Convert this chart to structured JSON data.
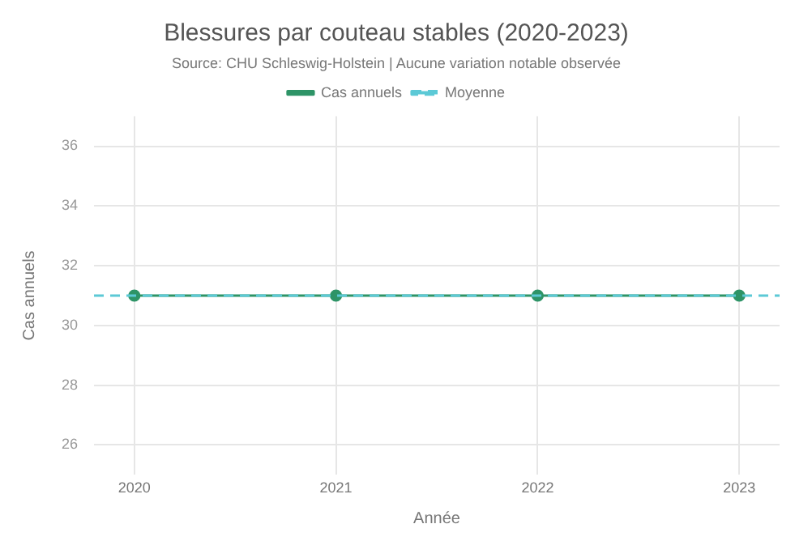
{
  "chart_data": {
    "type": "line",
    "title": "Blessures par couteau stables (2020-2023)",
    "subtitle": "Source: CHU Schleswig-Holstein | Aucune variation notable observée",
    "xlabel": "Année",
    "ylabel": "Cas annuels",
    "x": [
      2020,
      2021,
      2022,
      2023
    ],
    "series": [
      {
        "name": "Cas annuels",
        "color": "#2e9467",
        "values": [
          31,
          31,
          31,
          31
        ],
        "marker": "circle",
        "line_style": "solid"
      },
      {
        "name": "Moyenne",
        "type": "line",
        "color": "#5cc9d6",
        "x": [
          2019.8,
          2023.2
        ],
        "values": [
          31,
          31
        ],
        "marker": "none",
        "line_style": "dashed"
      }
    ],
    "xlim": [
      2019.8,
      2023.2
    ],
    "xticks": [
      2020,
      2021,
      2022,
      2023
    ],
    "ylim": [
      25,
      37
    ],
    "yticks": [
      26,
      28,
      30,
      32,
      34,
      36
    ],
    "grid": true,
    "legend": "top"
  }
}
